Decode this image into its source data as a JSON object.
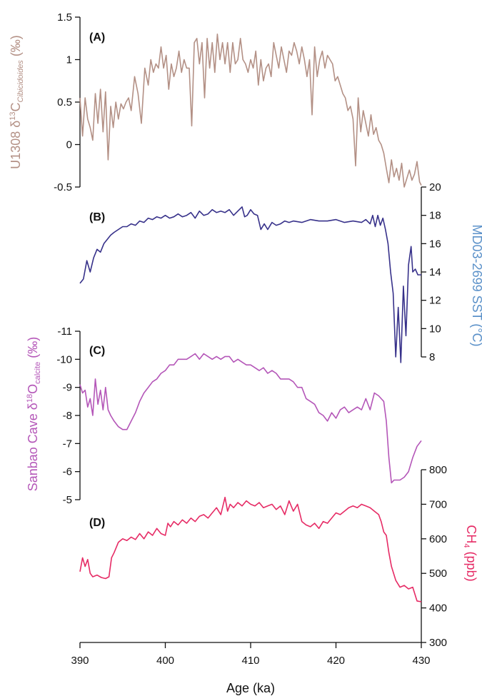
{
  "colors": {
    "A": "#b39085",
    "B": "#37318a",
    "C": "#b456b8",
    "D": "#e62b65",
    "B_label": "#5b91c9",
    "axis": "#111111"
  },
  "chart_data": [
    {
      "id": "A",
      "type": "line",
      "panel_label": "(A)",
      "ylabel_main": "U1308 δ",
      "ylabel_sup": "13",
      "ylabel_after": "C",
      "ylabel_sub": "Cibicidoides",
      "ylabel_unit": " (‰)",
      "ylim": [
        -0.5,
        1.5
      ],
      "yticks": [
        1.5,
        1,
        0.5,
        0,
        -0.5
      ],
      "ytick_labels": [
        "1.5",
        "1",
        "0.5",
        "0",
        "-0.5"
      ],
      "axis_side": "left",
      "x": [
        390,
        390.3,
        390.6,
        390.9,
        391.2,
        391.5,
        391.8,
        392.1,
        392.4,
        392.7,
        393.0,
        393.3,
        393.6,
        393.9,
        394.2,
        394.5,
        394.8,
        395.1,
        395.4,
        395.7,
        396.0,
        396.4,
        396.8,
        397.2,
        397.6,
        398.0,
        398.3,
        398.6,
        398.9,
        399.2,
        399.5,
        399.8,
        400.1,
        400.4,
        400.7,
        401.0,
        401.3,
        401.6,
        401.9,
        402.2,
        402.5,
        402.8,
        403.1,
        403.4,
        403.7,
        404.0,
        404.3,
        404.6,
        404.9,
        405.2,
        405.5,
        405.8,
        406.1,
        406.4,
        406.7,
        407.0,
        407.3,
        407.6,
        407.9,
        408.2,
        408.5,
        408.8,
        409.1,
        409.4,
        409.7,
        410.0,
        410.3,
        410.6,
        410.9,
        411.2,
        411.5,
        411.8,
        412.1,
        412.4,
        412.7,
        413.0,
        413.3,
        413.6,
        413.9,
        414.2,
        414.5,
        414.8,
        415.1,
        415.4,
        415.7,
        416.0,
        416.3,
        416.6,
        416.9,
        417.2,
        417.5,
        417.8,
        418.1,
        418.4,
        418.7,
        419.0,
        419.3,
        419.6,
        419.9,
        420.2,
        420.5,
        420.8,
        421.1,
        421.4,
        421.7,
        422.0,
        422.3,
        422.6,
        422.9,
        423.2,
        423.5,
        423.8,
        424.1,
        424.4,
        424.7,
        425.0,
        425.3,
        425.6,
        425.9,
        426.2,
        426.5,
        426.8,
        427.1,
        427.4,
        427.7,
        428.0,
        428.3,
        428.6,
        428.9,
        429.2,
        429.5,
        429.8,
        430.0
      ],
      "values": [
        0.55,
        0.1,
        0.55,
        0.3,
        0.2,
        0.05,
        0.6,
        0.25,
        0.65,
        0.15,
        0.62,
        -0.18,
        0.45,
        0.2,
        0.5,
        0.3,
        0.48,
        0.42,
        0.5,
        0.55,
        0.4,
        0.8,
        0.6,
        0.25,
        0.9,
        0.7,
        1.0,
        0.85,
        0.95,
        0.9,
        1.15,
        0.9,
        1.05,
        0.65,
        0.95,
        0.8,
        0.9,
        1.1,
        0.85,
        1.0,
        0.9,
        0.9,
        0.22,
        1.2,
        1.25,
        0.95,
        1.2,
        0.55,
        1.25,
        0.9,
        1.2,
        0.85,
        1.3,
        1.0,
        1.2,
        0.95,
        1.2,
        0.85,
        1.2,
        0.95,
        1.0,
        1.25,
        1.0,
        0.95,
        0.85,
        1.0,
        0.9,
        1.1,
        0.7,
        1.0,
        0.75,
        0.9,
        0.95,
        0.8,
        1.2,
        1.05,
        0.9,
        1.15,
        1.0,
        0.85,
        1.1,
        1.05,
        1.2,
        1.1,
        0.95,
        1.15,
        1.0,
        0.8,
        1.0,
        0.35,
        1.15,
        0.8,
        1.0,
        1.1,
        0.9,
        1.05,
        1.0,
        0.95,
        0.75,
        0.8,
        0.7,
        0.6,
        0.55,
        0.4,
        0.45,
        0.3,
        -0.25,
        0.55,
        0.15,
        0.4,
        0.25,
        0.1,
        0.35,
        0.12,
        0.2,
        0.05,
        0.0,
        -0.1,
        -0.28,
        -0.45,
        -0.18,
        -0.38,
        -0.28,
        -0.42,
        -0.22,
        -0.5,
        -0.4,
        -0.3,
        -0.42,
        -0.35,
        -0.2,
        -0.44,
        -0.48
      ]
    },
    {
      "id": "B",
      "type": "line",
      "panel_label": "(B)",
      "ylabel": "MD03-2699 SST (°C)",
      "ylim": [
        7,
        20
      ],
      "yticks": [
        20,
        18,
        16,
        14,
        12,
        10,
        8
      ],
      "ytick_labels": [
        "20",
        "18",
        "16",
        "14",
        "12",
        "10",
        "8"
      ],
      "axis_side": "right",
      "x": [
        390,
        390.4,
        390.8,
        391.2,
        391.6,
        392.0,
        392.4,
        392.8,
        393.2,
        393.6,
        394.0,
        394.5,
        395.0,
        395.5,
        396.0,
        396.5,
        397.0,
        397.5,
        398.0,
        398.5,
        399.0,
        399.5,
        400.0,
        400.5,
        401.0,
        401.5,
        402.0,
        402.5,
        403.0,
        403.5,
        404.0,
        404.5,
        405.0,
        405.5,
        406.0,
        406.5,
        407.0,
        407.5,
        408.0,
        408.5,
        409.0,
        409.3,
        409.6,
        410.0,
        410.4,
        410.8,
        411.2,
        411.6,
        412.0,
        412.5,
        413.0,
        413.5,
        414.0,
        414.5,
        415.0,
        416.0,
        417.0,
        418.0,
        419.0,
        420.0,
        421.0,
        422.0,
        423.0,
        423.5,
        424.0,
        424.3,
        424.6,
        424.9,
        425.2,
        425.5,
        425.8,
        426.1,
        426.4,
        426.7,
        427.0,
        427.3,
        427.6,
        427.9,
        428.2,
        428.5,
        428.8,
        429.0,
        429.3,
        429.6,
        430.0
      ],
      "values": [
        13.2,
        13.5,
        14.8,
        14.0,
        15.0,
        15.6,
        15.4,
        16.0,
        16.3,
        16.6,
        16.8,
        17.0,
        17.2,
        17.2,
        17.4,
        17.3,
        17.6,
        17.5,
        17.8,
        17.7,
        17.9,
        17.8,
        18.0,
        17.8,
        17.9,
        18.1,
        17.9,
        18.0,
        18.2,
        17.8,
        18.3,
        18.0,
        18.1,
        18.4,
        18.2,
        18.3,
        18.2,
        18.4,
        18.0,
        18.3,
        18.6,
        17.9,
        18.0,
        18.4,
        18.1,
        18.0,
        17.0,
        17.4,
        17.0,
        17.5,
        17.3,
        17.4,
        17.6,
        17.5,
        17.6,
        17.5,
        17.7,
        17.6,
        17.6,
        17.7,
        17.5,
        17.6,
        17.5,
        17.7,
        17.4,
        18.0,
        17.2,
        18.0,
        17.3,
        17.8,
        17.0,
        16.0,
        14.0,
        12.5,
        8.0,
        11.5,
        7.6,
        13.0,
        9.5,
        14.5,
        15.8,
        14.0,
        14.2,
        13.8,
        13.8
      ]
    },
    {
      "id": "C",
      "type": "line",
      "panel_label": "(C)",
      "ylabel_main": "Sanbao Cave δ",
      "ylabel_sup": "18",
      "ylabel_after": "O",
      "ylabel_sub": "calcite",
      "ylabel_unit": " (‰)",
      "ylim": [
        -11,
        -5
      ],
      "reversed": true,
      "yticks": [
        -11,
        -10,
        -9,
        -8,
        -7,
        -6,
        -5
      ],
      "ytick_labels": [
        "-11",
        "-10",
        "-9",
        "-8",
        "-7",
        "-6",
        "-5"
      ],
      "axis_side": "left",
      "x": [
        390,
        390.3,
        390.6,
        390.9,
        391.2,
        391.5,
        391.8,
        392.1,
        392.4,
        392.7,
        393.0,
        393.3,
        393.6,
        394.0,
        394.5,
        395.0,
        395.5,
        396.0,
        396.5,
        397.0,
        397.5,
        398.0,
        398.5,
        399.0,
        399.5,
        400.0,
        400.5,
        401.0,
        401.5,
        402.0,
        402.5,
        403.0,
        403.5,
        404.0,
        404.5,
        405.0,
        405.5,
        406.0,
        406.5,
        407.0,
        407.5,
        408.0,
        408.5,
        409.0,
        409.5,
        410.0,
        410.5,
        411.0,
        411.5,
        412.0,
        412.5,
        413.0,
        413.5,
        414.0,
        414.5,
        415.0,
        415.5,
        416.0,
        416.5,
        417.0,
        417.5,
        418.0,
        418.5,
        419.0,
        419.5,
        420.0,
        420.5,
        421.0,
        421.5,
        422.0,
        422.5,
        423.0,
        423.5,
        424.0,
        424.5,
        425.0,
        425.3,
        425.6,
        425.9,
        426.2,
        426.5,
        426.8,
        427.1,
        427.5,
        428.0,
        428.5,
        429.0,
        429.5,
        430.0
      ],
      "values": [
        -9.1,
        -8.8,
        -8.9,
        -8.3,
        -8.6,
        -8.0,
        -9.3,
        -8.4,
        -8.9,
        -8.2,
        -9.0,
        -8.2,
        -8.0,
        -7.8,
        -7.6,
        -7.5,
        -7.5,
        -7.8,
        -8.1,
        -8.5,
        -8.8,
        -9.0,
        -9.2,
        -9.3,
        -9.5,
        -9.6,
        -9.8,
        -9.8,
        -10.0,
        -10.0,
        -10.0,
        -10.1,
        -10.2,
        -10.0,
        -10.2,
        -10.1,
        -10.0,
        -10.1,
        -10.0,
        -10.1,
        -10.1,
        -9.9,
        -10.0,
        -9.9,
        -9.8,
        -9.8,
        -9.7,
        -9.6,
        -9.7,
        -9.5,
        -9.6,
        -9.5,
        -9.3,
        -9.3,
        -9.3,
        -9.2,
        -9.0,
        -9.0,
        -8.6,
        -8.5,
        -8.4,
        -8.1,
        -8.0,
        -7.8,
        -8.1,
        -7.9,
        -8.2,
        -8.3,
        -8.1,
        -8.2,
        -8.3,
        -8.2,
        -8.6,
        -8.2,
        -8.8,
        -8.7,
        -8.6,
        -8.5,
        -7.8,
        -6.5,
        -5.6,
        -5.7,
        -5.7,
        -5.7,
        -5.8,
        -6.0,
        -6.5,
        -6.9,
        -7.1
      ]
    },
    {
      "id": "D",
      "type": "line",
      "panel_label": "(D)",
      "ylabel_main": "CH",
      "ylabel_sub": "4",
      "ylabel_unit": " (ppb)",
      "ylim": [
        300,
        800
      ],
      "yticks": [
        800,
        700,
        600,
        500,
        400,
        300
      ],
      "ytick_labels": [
        "800",
        "700",
        "600",
        "500",
        "400",
        "300"
      ],
      "axis_side": "right",
      "x": [
        390,
        390.3,
        390.6,
        390.9,
        391.2,
        391.5,
        392.0,
        392.5,
        393.0,
        393.4,
        393.7,
        394.0,
        394.5,
        395.0,
        395.5,
        396.0,
        396.5,
        397.0,
        397.5,
        398.0,
        398.5,
        399.0,
        399.5,
        400.0,
        400.3,
        400.6,
        401.0,
        401.5,
        402.0,
        402.5,
        403.0,
        403.5,
        404.0,
        404.5,
        405.0,
        405.5,
        406.0,
        406.5,
        407.0,
        407.3,
        407.6,
        408.0,
        408.5,
        409.0,
        409.5,
        410.0,
        410.5,
        411.0,
        411.5,
        412.0,
        412.5,
        413.0,
        413.5,
        414.0,
        414.5,
        415.0,
        415.5,
        416.0,
        416.5,
        417.0,
        417.5,
        418.0,
        418.5,
        419.0,
        419.5,
        420.0,
        420.5,
        421.0,
        421.5,
        422.0,
        422.5,
        423.0,
        423.5,
        424.0,
        424.5,
        425.0,
        425.3,
        425.6,
        425.9,
        426.2,
        426.5,
        427.0,
        427.5,
        428.0,
        428.5,
        429.0,
        429.5,
        430.0
      ],
      "values": [
        505,
        545,
        520,
        540,
        500,
        490,
        495,
        488,
        485,
        490,
        545,
        560,
        590,
        600,
        595,
        605,
        598,
        615,
        600,
        620,
        610,
        630,
        615,
        610,
        645,
        635,
        650,
        640,
        655,
        645,
        660,
        650,
        665,
        670,
        660,
        675,
        690,
        670,
        720,
        680,
        700,
        690,
        705,
        695,
        710,
        700,
        695,
        705,
        690,
        695,
        700,
        685,
        695,
        670,
        710,
        680,
        700,
        650,
        640,
        635,
        645,
        630,
        650,
        645,
        660,
        675,
        670,
        680,
        690,
        695,
        690,
        700,
        695,
        690,
        680,
        670,
        650,
        620,
        610,
        560,
        520,
        480,
        460,
        465,
        455,
        460,
        420,
        418
      ]
    }
  ],
  "x_axis": {
    "label": "Age (ka)",
    "min": 390,
    "max": 430,
    "ticks": [
      390,
      400,
      410,
      420,
      430
    ],
    "tick_labels": [
      "390",
      "400",
      "410",
      "420",
      "430"
    ]
  }
}
